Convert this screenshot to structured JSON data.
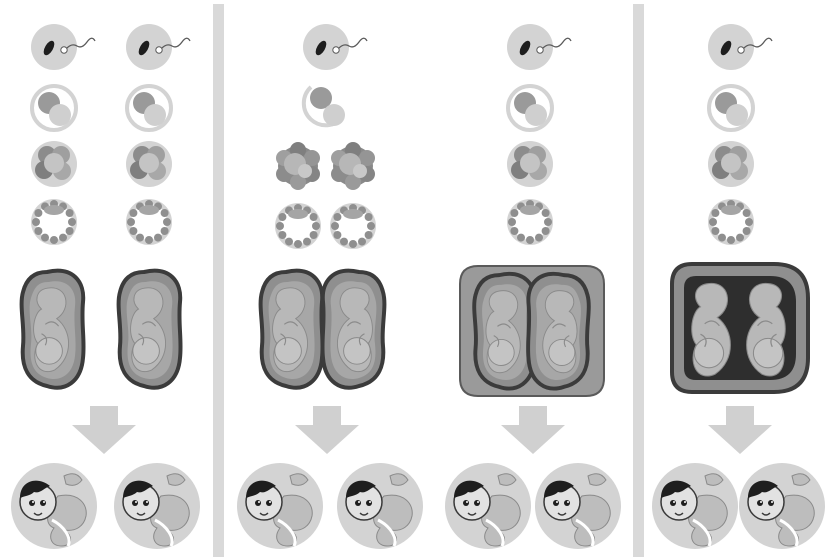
{
  "title": "",
  "panels": [
    {
      "embryos": 2,
      "pattern": "separate-placentas-separate-sacs",
      "stages": [
        "fertilized-egg",
        "zygote",
        "morula",
        "blastocyst",
        "fetus"
      ],
      "babies": 2
    },
    {
      "embryos": 2,
      "pattern": "early-split-separate-sacs",
      "stages": [
        "fertilized-egg",
        "splitting-zygote",
        "morula",
        "blastocyst",
        "fetus"
      ],
      "babies": 2
    },
    {
      "embryos": 1,
      "pattern": "shared-placenta-separate-sacs",
      "stages": [
        "fertilized-egg",
        "zygote",
        "morula",
        "blastocyst",
        "fetus"
      ],
      "babies": 2
    },
    {
      "embryos": 1,
      "pattern": "shared-placenta-shared-sac",
      "stages": [
        "fertilized-egg",
        "zygote",
        "morula",
        "blastocyst",
        "fetus"
      ],
      "babies": 2
    }
  ],
  "colors": {
    "circle": "#d3d3d3",
    "cell_dark": "#8c8c8c",
    "cell_light": "#c4c4c4",
    "uterus_outline": "#3b3b3b",
    "uterus_fill": "#8f8f8f",
    "fetus": "#b5b5b5",
    "arrow": "#d0d0d0",
    "divider": "#d9d9d9"
  }
}
